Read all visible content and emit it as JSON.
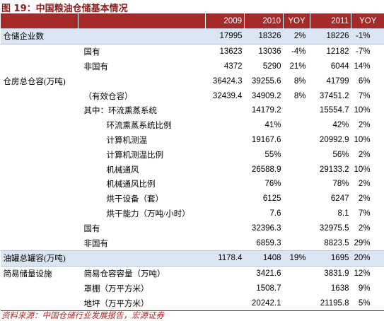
{
  "header": {
    "title": "图 19：中国粮油仓储基本情况"
  },
  "table": {
    "columns": [
      null,
      null,
      "2009",
      "2010",
      "YOY",
      "2011",
      "YOY"
    ],
    "rows": [
      [
        "仓储企业数",
        null,
        "17995",
        "18326",
        "2%",
        "18226",
        "-1%"
      ],
      [
        null,
        "国有",
        "13623",
        "13036",
        "-4%",
        "12182",
        "-7%"
      ],
      [
        null,
        "非国有",
        "4372",
        "5290",
        "21%",
        "6044",
        "14%"
      ],
      [
        "仓房总仓容(万吨)",
        null,
        "36424.3",
        "39255.6",
        "8%",
        "41799",
        "6%"
      ],
      [
        null,
        "（有效仓容）",
        "32439.4",
        "34909.2",
        "8%",
        "37451.2",
        "7%"
      ],
      [
        null,
        "其中：环流熏蒸系统",
        null,
        "14179.2",
        null,
        "15554.7",
        "10%"
      ],
      [
        null,
        "环流熏蒸系统比例",
        null,
        "41%",
        null,
        "42%",
        "2%"
      ],
      [
        null,
        "计算机测温",
        null,
        "19167.6",
        null,
        "20992.9",
        "10%"
      ],
      [
        null,
        "计算机测温比例",
        null,
        "55%",
        null,
        "56%",
        "2%"
      ],
      [
        null,
        "机械通风",
        null,
        "26588.9",
        null,
        "29133.2",
        "10%"
      ],
      [
        null,
        "机械通风比例",
        null,
        "76%",
        null,
        "78%",
        "2%"
      ],
      [
        null,
        "烘干设备（套）",
        null,
        "6125",
        null,
        "6247",
        "2%"
      ],
      [
        null,
        "烘干能力（万吨/小时）",
        null,
        "7.6",
        null,
        "8.1",
        "7%"
      ],
      [
        null,
        "国有",
        null,
        "32396.3",
        null,
        "32975.5",
        "2%"
      ],
      [
        null,
        "非国有",
        null,
        "6859.3",
        null,
        "8823.5",
        "29%"
      ],
      [
        "油罐总罐容(万吨)",
        null,
        "1178.4",
        "1408",
        "19%",
        "1695",
        "20%"
      ],
      [
        "简易储量设施",
        "简易仓容容量（万吨）",
        null,
        "3421.6",
        null,
        "3831.9",
        "12%"
      ],
      [
        null,
        "罩棚（万平方米）",
        null,
        "1508.7",
        null,
        "1638",
        "9%"
      ],
      [
        null,
        "地坪（万平方米）",
        null,
        "20242.1",
        null,
        "21195.8",
        "5%"
      ]
    ]
  },
  "footer": {
    "source": "资料来源：中国仓储行业发展报告，宏源证券"
  }
}
